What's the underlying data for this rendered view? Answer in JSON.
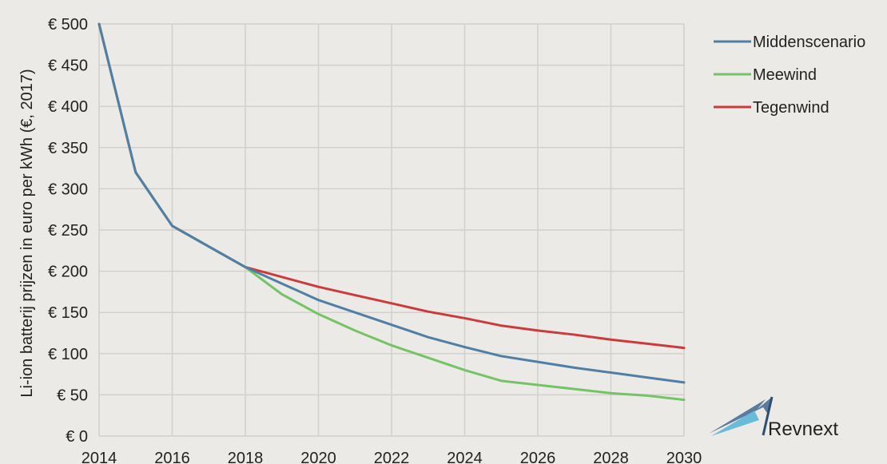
{
  "chart_data": {
    "type": "line",
    "ylabel": "Li-ion batterij prijzen in euro per kWh (€, 2017)",
    "xlabel": "",
    "xlim": [
      2014,
      2030
    ],
    "ylim": [
      0,
      500
    ],
    "x_ticks": [
      2014,
      2016,
      2018,
      2020,
      2022,
      2024,
      2026,
      2028,
      2030
    ],
    "y_ticks": [
      0,
      50,
      100,
      150,
      200,
      250,
      300,
      350,
      400,
      450,
      500
    ],
    "y_tick_labels": [
      "€ 0",
      "€ 50",
      "€ 100",
      "€ 150",
      "€ 200",
      "€ 250",
      "€ 300",
      "€ 350",
      "€ 400",
      "€ 450",
      "€ 500"
    ],
    "grid": true,
    "legend_position": "right",
    "series": [
      {
        "name": "Middenscenario",
        "color": "#4f7fa6",
        "x": [
          2014,
          2015,
          2016,
          2017,
          2018,
          2019,
          2020,
          2021,
          2022,
          2023,
          2024,
          2025,
          2026,
          2027,
          2028,
          2029,
          2030
        ],
        "values": [
          500,
          320,
          255,
          230,
          205,
          185,
          165,
          150,
          135,
          120,
          108,
          97,
          90,
          83,
          77,
          71,
          65
        ]
      },
      {
        "name": "Meewind",
        "color": "#74c365",
        "x": [
          2014,
          2015,
          2016,
          2017,
          2018,
          2019,
          2020,
          2021,
          2022,
          2023,
          2024,
          2025,
          2026,
          2027,
          2028,
          2029,
          2030
        ],
        "values": [
          500,
          320,
          255,
          230,
          205,
          172,
          148,
          128,
          110,
          95,
          80,
          67,
          62,
          57,
          52,
          49,
          44
        ]
      },
      {
        "name": "Tegenwind",
        "color": "#cc3b3b",
        "x": [
          2014,
          2015,
          2016,
          2017,
          2018,
          2019,
          2020,
          2021,
          2022,
          2023,
          2024,
          2025,
          2026,
          2027,
          2028,
          2029,
          2030
        ],
        "values": [
          500,
          320,
          255,
          230,
          205,
          193,
          181,
          171,
          161,
          151,
          143,
          134,
          128,
          123,
          117,
          112,
          107
        ]
      }
    ]
  },
  "logo": {
    "text": "Revnext"
  }
}
